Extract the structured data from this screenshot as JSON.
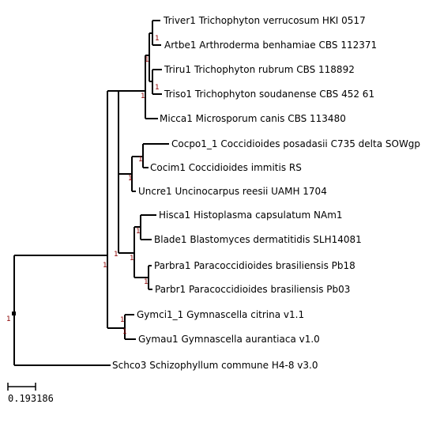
{
  "tree": {
    "support_color": "#8b0000",
    "branch_color": "#000000",
    "leaves": [
      {
        "id": "triver1",
        "label": "Triver1 Trichophyton verrucosum HKI 0517"
      },
      {
        "id": "artbe1",
        "label": "Artbe1 Arthroderma benhamiae CBS 112371"
      },
      {
        "id": "triru1",
        "label": "Triru1 Trichophyton rubrum CBS 118892"
      },
      {
        "id": "triso1",
        "label": "Triso1 Trichophyton soudanense CBS 452 61"
      },
      {
        "id": "micca1",
        "label": "Micca1 Microsporum canis CBS 113480"
      },
      {
        "id": "cocpo1",
        "label": "Cocpo1_1 Coccidioides posadasii C735 delta SOWgp"
      },
      {
        "id": "cocim1",
        "label": "Cocim1 Coccidioides immitis RS"
      },
      {
        "id": "uncre1",
        "label": "Uncre1 Uncinocarpus reesii UAMH 1704"
      },
      {
        "id": "hisca1",
        "label": "Hisca1 Histoplasma capsulatum NAm1"
      },
      {
        "id": "blade1",
        "label": "Blade1 Blastomyces dermatitidis SLH14081"
      },
      {
        "id": "parbra1",
        "label": "Parbra1 Paracoccidioides brasiliensis Pb18"
      },
      {
        "id": "parbr1",
        "label": "Parbr1 Paracoccidioides brasiliensis Pb03"
      },
      {
        "id": "gymci1",
        "label": "Gymci1_1 Gymnascella citrina v1.1"
      },
      {
        "id": "gymau1",
        "label": "Gymau1 Gymnascella aurantiaca v1.0"
      },
      {
        "id": "schco3",
        "label": "Schco3 Schizophyllum commune H4-8 v3.0"
      }
    ],
    "support_values": [
      "1",
      "1",
      "1",
      "1",
      "1",
      "1",
      "1",
      "1",
      "1",
      "1",
      "1",
      "1",
      "1"
    ],
    "root_support": "1",
    "scale_bar_label": "0.193186"
  }
}
